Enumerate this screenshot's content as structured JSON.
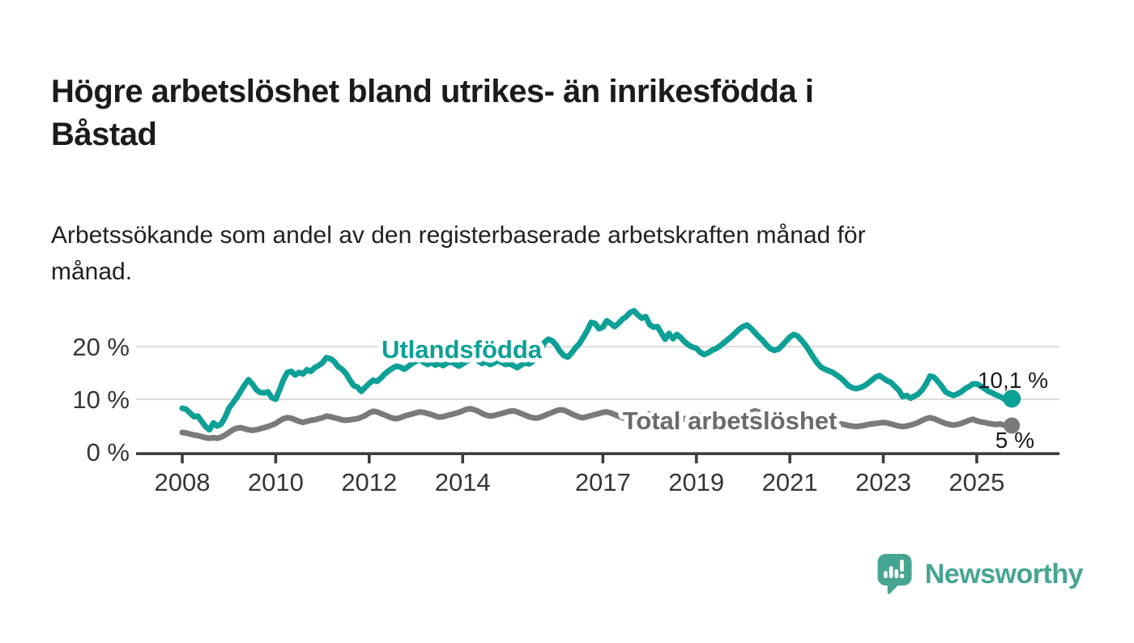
{
  "header": {
    "title_lines": [
      "Högre arbetslöshet bland utrikes- än inrikesfödda i",
      "Båstad"
    ],
    "subtitle_lines": [
      "Arbetssökande som andel av den registerbaserade arbetskraften månad för",
      "månad."
    ]
  },
  "chart": {
    "y_axis": {
      "tick_values": [
        0,
        10,
        20
      ],
      "tick_labels": [
        "0 %",
        "10 %",
        "20 %"
      ]
    },
    "x_axis": {
      "tick_years": [
        2008,
        2010,
        2012,
        2014,
        2017,
        2019,
        2021,
        2023,
        2025
      ]
    },
    "series_labels": {
      "utlandsfodda": "Utlandsfödda",
      "total": "Total arbetslöshet"
    },
    "end_annotations": {
      "utlandsfodda": "10,1 %",
      "total": "5 %"
    }
  },
  "chart_data": {
    "type": "line",
    "title": "Högre arbetslöshet bland utrikes- än inrikesfödda i Båstad",
    "subtitle": "Arbetssökande som andel av den registerbaserade arbetskraften månad för månad.",
    "unit": "%",
    "frequency": "monthly",
    "x_start": "2008-01",
    "x_end": "2025-10",
    "ylim": [
      0,
      28
    ],
    "y_ticks": [
      0,
      10,
      20
    ],
    "x_tick_years": [
      2008,
      2010,
      2012,
      2014,
      2017,
      2019,
      2021,
      2023,
      2025
    ],
    "grid": "horizontal-only",
    "series": [
      {
        "name": "Utlandsfödda",
        "color": "#0ca096",
        "end_value": 10.1,
        "end_value_label": "10,1 %",
        "values": [
          8.3,
          8.1,
          7.4,
          6.7,
          6.8,
          5.8,
          4.8,
          4.2,
          5.5,
          4.9,
          5.3,
          6.6,
          8.3,
          9.3,
          10.3,
          11.5,
          12.7,
          13.7,
          12.9,
          11.8,
          11.3,
          11.2,
          11.4,
          10.3,
          10.0,
          11.8,
          13.7,
          15.1,
          15.3,
          14.6,
          15.1,
          14.8,
          15.6,
          15.3,
          16.0,
          16.4,
          16.9,
          17.9,
          17.7,
          17.2,
          16.2,
          15.7,
          14.9,
          13.7,
          12.6,
          12.3,
          11.5,
          12.3,
          13.0,
          13.6,
          13.4,
          14.0,
          14.8,
          15.4,
          15.9,
          16.3,
          16.1,
          15.7,
          16.2,
          16.8,
          17.2,
          17.5,
          17.0,
          16.6,
          17.0,
          16.5,
          16.8,
          16.4,
          16.9,
          17.1,
          16.7,
          16.3,
          16.7,
          17.2,
          17.6,
          17.9,
          17.3,
          16.8,
          17.1,
          16.6,
          16.9,
          17.3,
          17.0,
          16.6,
          16.8,
          16.4,
          16.0,
          16.5,
          16.9,
          16.7,
          17.2,
          18.5,
          19.2,
          20.8,
          21.4,
          21.1,
          20.3,
          19.1,
          18.3,
          18.0,
          18.8,
          19.8,
          20.6,
          21.8,
          23.1,
          24.6,
          24.4,
          23.4,
          23.7,
          24.9,
          24.4,
          23.8,
          24.4,
          25.2,
          25.7,
          26.5,
          26.8,
          26.0,
          25.4,
          25.7,
          24.2,
          23.7,
          23.8,
          22.6,
          21.4,
          22.5,
          21.5,
          22.3,
          21.7,
          20.9,
          20.3,
          19.9,
          19.7,
          18.9,
          18.5,
          18.8,
          19.3,
          19.6,
          20.1,
          20.7,
          21.3,
          21.9,
          22.6,
          23.3,
          23.8,
          24.1,
          23.5,
          22.7,
          21.9,
          21.2,
          20.3,
          19.6,
          19.3,
          19.5,
          20.2,
          21.0,
          21.8,
          22.3,
          22.0,
          21.2,
          20.3,
          19.2,
          18.0,
          16.9,
          16.1,
          15.7,
          15.4,
          15.1,
          14.6,
          14.1,
          13.4,
          12.6,
          12.2,
          12.0,
          12.2,
          12.5,
          13.0,
          13.6,
          14.2,
          14.5,
          14.0,
          13.5,
          13.2,
          12.4,
          11.7,
          10.5,
          10.7,
          10.2,
          10.6,
          11.0,
          11.8,
          12.9,
          14.4,
          14.2,
          13.4,
          12.5,
          11.4,
          11.0,
          10.7,
          11.0,
          11.4,
          12.0,
          12.4,
          12.9,
          12.9,
          12.5,
          12.0,
          11.5,
          11.2,
          10.8,
          10.5,
          10.1,
          9.8,
          10.1
        ]
      },
      {
        "name": "Total arbetslöshet",
        "color": "#7a7a7a",
        "end_value": 5.0,
        "end_value_label": "5 %",
        "values": [
          3.7,
          3.6,
          3.4,
          3.2,
          3.1,
          2.9,
          2.7,
          2.6,
          2.7,
          2.6,
          2.8,
          3.2,
          3.7,
          4.2,
          4.5,
          4.6,
          4.4,
          4.2,
          4.1,
          4.2,
          4.4,
          4.6,
          4.8,
          5.1,
          5.4,
          5.9,
          6.3,
          6.5,
          6.4,
          6.1,
          5.8,
          5.6,
          5.8,
          6.0,
          6.1,
          6.3,
          6.5,
          6.8,
          6.7,
          6.5,
          6.3,
          6.1,
          6.0,
          6.1,
          6.2,
          6.3,
          6.6,
          6.9,
          7.4,
          7.7,
          7.6,
          7.3,
          7.0,
          6.7,
          6.4,
          6.3,
          6.5,
          6.8,
          7.0,
          7.2,
          7.4,
          7.6,
          7.5,
          7.3,
          7.1,
          6.8,
          6.6,
          6.7,
          6.9,
          7.1,
          7.3,
          7.5,
          7.8,
          8.1,
          8.2,
          8.0,
          7.7,
          7.3,
          7.0,
          6.8,
          6.9,
          7.1,
          7.3,
          7.5,
          7.7,
          7.8,
          7.6,
          7.3,
          7.0,
          6.7,
          6.5,
          6.4,
          6.6,
          6.9,
          7.2,
          7.5,
          7.8,
          8.0,
          7.9,
          7.6,
          7.2,
          6.9,
          6.6,
          6.5,
          6.7,
          6.9,
          7.1,
          7.3,
          7.5,
          7.6,
          7.4,
          7.1,
          6.8,
          6.5,
          6.3,
          6.2,
          6.4,
          6.6,
          6.8,
          7.0,
          7.2,
          7.3,
          7.1,
          6.8,
          6.5,
          6.2,
          6.0,
          5.9,
          6.1,
          6.3,
          6.5,
          6.7,
          6.9,
          7.0,
          6.8,
          6.5,
          6.3,
          6.0,
          5.9,
          6.0,
          6.2,
          6.4,
          6.6,
          6.8,
          7.0,
          7.2,
          7.5,
          7.8,
          7.6,
          7.3,
          7.0,
          6.8,
          6.6,
          6.5,
          6.6,
          6.8,
          7.0,
          7.1,
          6.9,
          6.6,
          6.3,
          6.0,
          5.7,
          5.4,
          5.2,
          5.1,
          5.0,
          5.1,
          5.2,
          5.3,
          5.2,
          5.0,
          4.9,
          4.8,
          4.9,
          5.0,
          5.2,
          5.3,
          5.4,
          5.5,
          5.6,
          5.5,
          5.3,
          5.1,
          4.9,
          4.8,
          4.9,
          5.1,
          5.3,
          5.6,
          6.0,
          6.3,
          6.5,
          6.3,
          6.0,
          5.7,
          5.4,
          5.2,
          5.1,
          5.2,
          5.4,
          5.7,
          6.0,
          6.2,
          5.9,
          5.7,
          5.6,
          5.4,
          5.3,
          5.2,
          5.3,
          5.1,
          4.9,
          5.0
        ]
      }
    ],
    "legend_position": "inline-labels-on-lines"
  },
  "footer": {
    "brand": "Newsworthy"
  },
  "colors": {
    "accent_teal": "#0ca096",
    "series_gray": "#7a7a7a",
    "series_label_gray": "#6b6b6b",
    "brand_teal": "#46a492",
    "axis_dark": "#3d3d3d",
    "gridline": "#dcdcdc",
    "text_dark": "#1b1b1b"
  }
}
